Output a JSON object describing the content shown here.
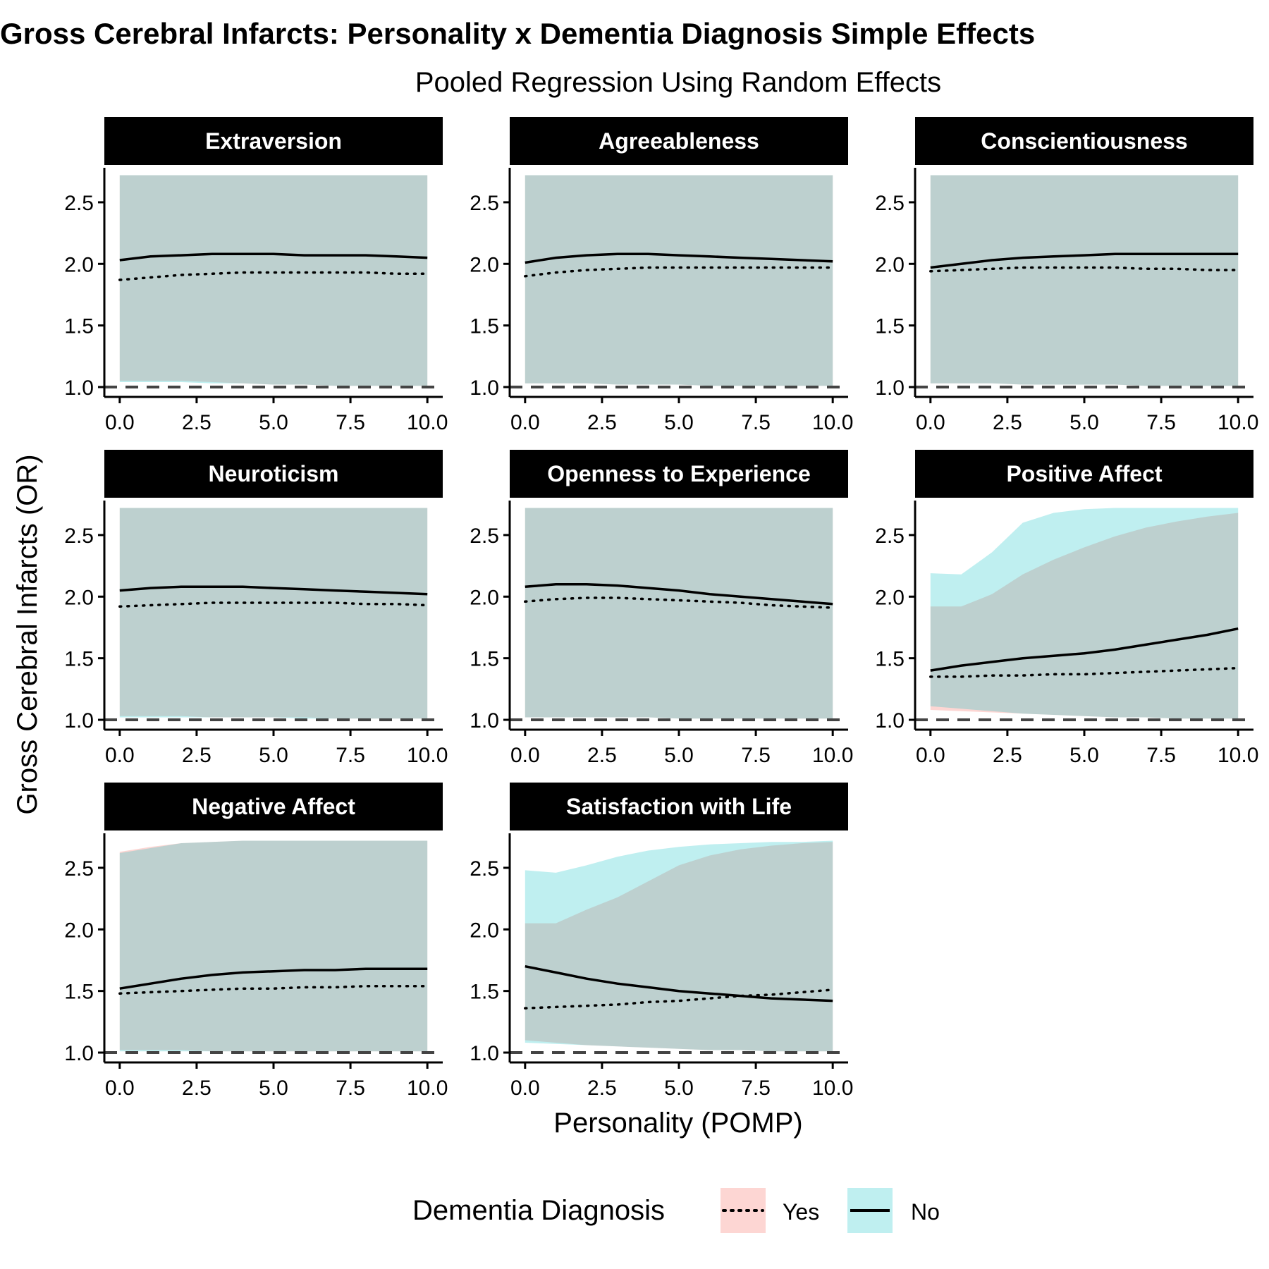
{
  "chart_data": {
    "type": "line",
    "title": "Gross Cerebral Infarcts: Personality x Dementia Diagnosis Simple Effects",
    "subtitle": "Pooled Regression Using Random Effects",
    "xlabel": "Personality (POMP)",
    "ylabel": "Gross Cerebral Infarcts (OR)",
    "xlim": [
      -0.5,
      10.5
    ],
    "ylim": [
      0.92,
      2.78
    ],
    "xticks": [
      0,
      2.5,
      5,
      7.5,
      10
    ],
    "xtick_labels": [
      "0.0",
      "2.5",
      "5.0",
      "7.5",
      "10.0"
    ],
    "yticks": [
      1,
      1.5,
      2,
      2.5
    ],
    "ytick_labels": [
      "1.0",
      "1.5",
      "2.0",
      "2.5"
    ],
    "reference_line": 1.0,
    "grid": false,
    "legend": {
      "title": "Dementia Diagnosis",
      "position": "bottom",
      "entries": [
        {
          "label": "Yes",
          "line": "dotted",
          "fill": "#F8766D"
        },
        {
          "label": "No",
          "line": "solid",
          "fill": "#00BFC4"
        }
      ]
    },
    "x": [
      0,
      1,
      2,
      3,
      4,
      5,
      6,
      7,
      8,
      9,
      10
    ],
    "panels": [
      {
        "name": "Extraversion",
        "yes": [
          1.87,
          1.89,
          1.91,
          1.92,
          1.93,
          1.93,
          1.93,
          1.93,
          1.93,
          1.92,
          1.92
        ],
        "no": [
          2.03,
          2.06,
          2.07,
          2.08,
          2.08,
          2.08,
          2.07,
          2.07,
          2.07,
          2.06,
          2.05
        ],
        "band_yes": {
          "lo": [
            1.05,
            1.05,
            1.05,
            1.04,
            1.03,
            1.02,
            1.02,
            1.01,
            1.01,
            1.01,
            1.01
          ],
          "hi": [
            2.72,
            2.72,
            2.72,
            2.72,
            2.72,
            2.72,
            2.72,
            2.72,
            2.72,
            2.72,
            2.72
          ]
        },
        "band_no": {
          "lo": [
            1.04,
            1.04,
            1.04,
            1.03,
            1.03,
            1.02,
            1.02,
            1.01,
            1.01,
            1.01,
            1.01
          ],
          "hi": [
            2.72,
            2.72,
            2.72,
            2.72,
            2.72,
            2.72,
            2.72,
            2.72,
            2.72,
            2.72,
            2.72
          ]
        }
      },
      {
        "name": "Agreeableness",
        "yes": [
          1.9,
          1.93,
          1.95,
          1.96,
          1.97,
          1.97,
          1.97,
          1.97,
          1.97,
          1.97,
          1.97
        ],
        "no": [
          2.01,
          2.05,
          2.07,
          2.08,
          2.08,
          2.07,
          2.06,
          2.05,
          2.04,
          2.03,
          2.02
        ],
        "band_yes": {
          "lo": [
            1.03,
            1.03,
            1.03,
            1.02,
            1.02,
            1.02,
            1.01,
            1.01,
            1.01,
            1.01,
            1.01
          ],
          "hi": [
            2.72,
            2.72,
            2.72,
            2.72,
            2.72,
            2.72,
            2.72,
            2.72,
            2.72,
            2.72,
            2.72
          ]
        },
        "band_no": {
          "lo": [
            1.03,
            1.03,
            1.03,
            1.02,
            1.02,
            1.02,
            1.01,
            1.01,
            1.01,
            1.01,
            1.01
          ],
          "hi": [
            2.72,
            2.72,
            2.72,
            2.72,
            2.72,
            2.72,
            2.72,
            2.72,
            2.72,
            2.72,
            2.72
          ]
        }
      },
      {
        "name": "Conscientiousness",
        "yes": [
          1.94,
          1.95,
          1.96,
          1.97,
          1.97,
          1.97,
          1.97,
          1.96,
          1.96,
          1.95,
          1.95
        ],
        "no": [
          1.97,
          2.0,
          2.03,
          2.05,
          2.06,
          2.07,
          2.08,
          2.08,
          2.08,
          2.08,
          2.08
        ],
        "band_yes": {
          "lo": [
            1.03,
            1.03,
            1.03,
            1.02,
            1.02,
            1.02,
            1.02,
            1.01,
            1.01,
            1.01,
            1.01
          ],
          "hi": [
            2.72,
            2.72,
            2.72,
            2.72,
            2.72,
            2.72,
            2.72,
            2.72,
            2.72,
            2.72,
            2.72
          ]
        },
        "band_no": {
          "lo": [
            1.03,
            1.03,
            1.03,
            1.02,
            1.02,
            1.02,
            1.02,
            1.01,
            1.01,
            1.01,
            1.01
          ],
          "hi": [
            2.72,
            2.72,
            2.72,
            2.72,
            2.72,
            2.72,
            2.72,
            2.72,
            2.72,
            2.72,
            2.72
          ]
        }
      },
      {
        "name": "Neuroticism",
        "yes": [
          1.92,
          1.93,
          1.94,
          1.95,
          1.95,
          1.95,
          1.95,
          1.95,
          1.94,
          1.94,
          1.93
        ],
        "no": [
          2.05,
          2.07,
          2.08,
          2.08,
          2.08,
          2.07,
          2.06,
          2.05,
          2.04,
          2.03,
          2.02
        ],
        "band_yes": {
          "lo": [
            1.03,
            1.03,
            1.03,
            1.02,
            1.02,
            1.02,
            1.02,
            1.01,
            1.01,
            1.01,
            1.01
          ],
          "hi": [
            2.72,
            2.72,
            2.72,
            2.72,
            2.72,
            2.72,
            2.72,
            2.72,
            2.72,
            2.72,
            2.72
          ]
        },
        "band_no": {
          "lo": [
            1.02,
            1.02,
            1.02,
            1.02,
            1.02,
            1.02,
            1.01,
            1.01,
            1.01,
            1.01,
            1.01
          ],
          "hi": [
            2.72,
            2.72,
            2.72,
            2.72,
            2.72,
            2.72,
            2.72,
            2.72,
            2.72,
            2.72,
            2.72
          ]
        }
      },
      {
        "name": "Openness to Experience",
        "yes": [
          1.96,
          1.98,
          1.99,
          1.99,
          1.98,
          1.97,
          1.96,
          1.95,
          1.93,
          1.92,
          1.91
        ],
        "no": [
          2.08,
          2.1,
          2.1,
          2.09,
          2.07,
          2.05,
          2.02,
          2.0,
          1.98,
          1.96,
          1.94
        ],
        "band_yes": {
          "lo": [
            1.02,
            1.02,
            1.02,
            1.02,
            1.02,
            1.01,
            1.01,
            1.01,
            1.01,
            1.01,
            1.01
          ],
          "hi": [
            2.72,
            2.72,
            2.72,
            2.72,
            2.72,
            2.72,
            2.72,
            2.72,
            2.72,
            2.72,
            2.72
          ]
        },
        "band_no": {
          "lo": [
            1.02,
            1.02,
            1.02,
            1.02,
            1.02,
            1.01,
            1.01,
            1.01,
            1.01,
            1.01,
            1.01
          ],
          "hi": [
            2.72,
            2.72,
            2.72,
            2.72,
            2.72,
            2.72,
            2.72,
            2.72,
            2.72,
            2.72,
            2.72
          ]
        }
      },
      {
        "name": "Positive Affect",
        "yes": [
          1.35,
          1.35,
          1.36,
          1.36,
          1.37,
          1.37,
          1.38,
          1.39,
          1.4,
          1.41,
          1.42
        ],
        "no": [
          1.4,
          1.44,
          1.47,
          1.5,
          1.52,
          1.54,
          1.57,
          1.61,
          1.65,
          1.69,
          1.74
        ],
        "band_yes": {
          "lo": [
            1.08,
            1.07,
            1.06,
            1.05,
            1.04,
            1.03,
            1.02,
            1.02,
            1.01,
            1.01,
            1.01
          ],
          "hi": [
            1.92,
            1.92,
            2.02,
            2.18,
            2.3,
            2.4,
            2.49,
            2.56,
            2.61,
            2.65,
            2.68
          ]
        },
        "band_no": {
          "lo": [
            1.11,
            1.09,
            1.07,
            1.05,
            1.04,
            1.03,
            1.02,
            1.02,
            1.01,
            1.01,
            1.01
          ],
          "hi": [
            2.19,
            2.18,
            2.36,
            2.6,
            2.68,
            2.71,
            2.72,
            2.72,
            2.72,
            2.72,
            2.72
          ]
        }
      },
      {
        "name": "Negative Affect",
        "yes": [
          1.48,
          1.49,
          1.5,
          1.51,
          1.52,
          1.52,
          1.53,
          1.53,
          1.54,
          1.54,
          1.54
        ],
        "no": [
          1.52,
          1.56,
          1.6,
          1.63,
          1.65,
          1.66,
          1.67,
          1.67,
          1.68,
          1.68,
          1.68
        ],
        "band_yes": {
          "lo": [
            1.02,
            1.02,
            1.02,
            1.01,
            1.01,
            1.01,
            1.01,
            1.01,
            1.01,
            1.01,
            1.01
          ],
          "hi": [
            2.63,
            2.67,
            2.7,
            2.71,
            2.72,
            2.72,
            2.72,
            2.72,
            2.72,
            2.72,
            2.72
          ]
        },
        "band_no": {
          "lo": [
            1.01,
            1.01,
            1.01,
            1.01,
            1.01,
            1.01,
            1.01,
            1.01,
            1.01,
            1.01,
            1.01
          ],
          "hi": [
            2.62,
            2.66,
            2.7,
            2.71,
            2.72,
            2.72,
            2.72,
            2.72,
            2.72,
            2.72,
            2.72
          ]
        }
      },
      {
        "name": "Satisfaction with Life",
        "yes": [
          1.36,
          1.37,
          1.38,
          1.39,
          1.41,
          1.42,
          1.44,
          1.46,
          1.47,
          1.49,
          1.51
        ],
        "no": [
          1.7,
          1.65,
          1.6,
          1.56,
          1.53,
          1.5,
          1.48,
          1.46,
          1.44,
          1.43,
          1.42
        ],
        "band_yes": {
          "lo": [
            1.1,
            1.08,
            1.06,
            1.05,
            1.04,
            1.03,
            1.02,
            1.02,
            1.01,
            1.01,
            1.01
          ],
          "hi": [
            2.05,
            2.05,
            2.16,
            2.26,
            2.39,
            2.52,
            2.6,
            2.65,
            2.68,
            2.7,
            2.71
          ]
        },
        "band_no": {
          "lo": [
            1.08,
            1.07,
            1.06,
            1.05,
            1.04,
            1.03,
            1.02,
            1.02,
            1.01,
            1.01,
            1.01
          ],
          "hi": [
            2.48,
            2.46,
            2.52,
            2.59,
            2.64,
            2.67,
            2.69,
            2.7,
            2.71,
            2.71,
            2.72
          ]
        }
      }
    ]
  }
}
